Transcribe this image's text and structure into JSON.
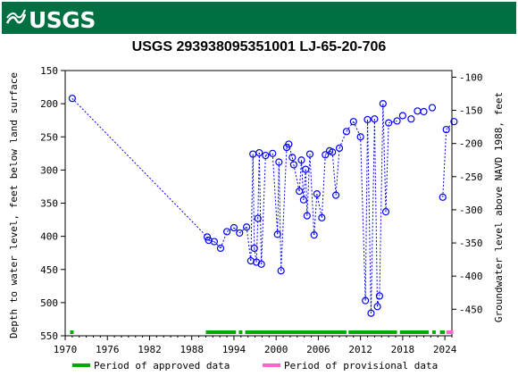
{
  "header": {
    "logo_text": "USGS",
    "band_color": "#006f41"
  },
  "chart_data": {
    "type": "scatter",
    "title": "USGS 293938095351001 LJ-65-20-706",
    "xlabel": "",
    "ylabel": "Depth to water level, feet below land surface",
    "ylabel_right": "Groundwater level above NAVD 1988, feet",
    "xlim": [
      1970,
      2025
    ],
    "ylim": [
      150,
      550
    ],
    "y_inverted": true,
    "ylim_right": [
      -90,
      -490
    ],
    "x_ticks": [
      1970,
      1976,
      1982,
      1988,
      1994,
      2000,
      2006,
      2012,
      2018,
      2024
    ],
    "y_ticks": [
      150,
      200,
      250,
      300,
      350,
      400,
      450,
      500,
      550
    ],
    "y_ticks_right": [
      -100,
      -150,
      -200,
      -250,
      -300,
      -350,
      -400,
      -450
    ],
    "grid": false,
    "marker_color": "#0000ff",
    "connect_color": "#0000ff",
    "points": [
      {
        "x": 1971.0,
        "y": 192,
        "c": false
      },
      {
        "x": 1990.2,
        "y": 401,
        "c": true
      },
      {
        "x": 1990.4,
        "y": 406,
        "c": true
      },
      {
        "x": 1991.2,
        "y": 408,
        "c": true
      },
      {
        "x": 1992.1,
        "y": 418,
        "c": true
      },
      {
        "x": 1993.0,
        "y": 393,
        "c": true
      },
      {
        "x": 1994.0,
        "y": 387,
        "c": true
      },
      {
        "x": 1994.8,
        "y": 395,
        "c": true
      },
      {
        "x": 1995.8,
        "y": 386,
        "c": true
      },
      {
        "x": 1996.4,
        "y": 437,
        "c": true
      },
      {
        "x": 1996.7,
        "y": 276,
        "c": true
      },
      {
        "x": 1996.9,
        "y": 418,
        "c": true
      },
      {
        "x": 1997.2,
        "y": 439,
        "c": true
      },
      {
        "x": 1997.4,
        "y": 373,
        "c": true
      },
      {
        "x": 1997.6,
        "y": 274,
        "c": true
      },
      {
        "x": 1997.9,
        "y": 442,
        "c": true
      },
      {
        "x": 1998.5,
        "y": 278,
        "c": true
      },
      {
        "x": 1999.5,
        "y": 275,
        "c": true
      },
      {
        "x": 2000.2,
        "y": 397,
        "c": true
      },
      {
        "x": 2000.4,
        "y": 288,
        "c": true
      },
      {
        "x": 2000.7,
        "y": 452,
        "c": true
      },
      {
        "x": 2001.5,
        "y": 266,
        "c": true
      },
      {
        "x": 2001.8,
        "y": 261,
        "c": true
      },
      {
        "x": 2002.3,
        "y": 281,
        "c": true
      },
      {
        "x": 2002.5,
        "y": 292,
        "c": true
      },
      {
        "x": 2003.3,
        "y": 332,
        "c": true
      },
      {
        "x": 2003.6,
        "y": 285,
        "c": true
      },
      {
        "x": 2003.9,
        "y": 345,
        "c": true
      },
      {
        "x": 2004.2,
        "y": 299,
        "c": true
      },
      {
        "x": 2004.4,
        "y": 369,
        "c": true
      },
      {
        "x": 2004.8,
        "y": 276,
        "c": true
      },
      {
        "x": 2005.4,
        "y": 398,
        "c": true
      },
      {
        "x": 2005.8,
        "y": 336,
        "c": true
      },
      {
        "x": 2006.5,
        "y": 372,
        "c": true
      },
      {
        "x": 2007.0,
        "y": 277,
        "c": true
      },
      {
        "x": 2007.6,
        "y": 271,
        "c": true
      },
      {
        "x": 2008.0,
        "y": 273,
        "c": true
      },
      {
        "x": 2008.5,
        "y": 338,
        "c": true
      },
      {
        "x": 2009.0,
        "y": 267,
        "c": true
      },
      {
        "x": 2010.0,
        "y": 242,
        "c": true
      },
      {
        "x": 2011.0,
        "y": 227,
        "c": true
      },
      {
        "x": 2012.0,
        "y": 250,
        "c": true
      },
      {
        "x": 2012.7,
        "y": 497,
        "c": true
      },
      {
        "x": 2013.0,
        "y": 224,
        "c": true
      },
      {
        "x": 2013.5,
        "y": 516,
        "c": true
      },
      {
        "x": 2014.0,
        "y": 223,
        "c": true
      },
      {
        "x": 2014.4,
        "y": 506,
        "c": true
      },
      {
        "x": 2014.7,
        "y": 490,
        "c": true
      },
      {
        "x": 2015.2,
        "y": 200,
        "c": true
      },
      {
        "x": 2015.6,
        "y": 363,
        "c": true
      },
      {
        "x": 2016.0,
        "y": 229,
        "c": true
      },
      {
        "x": 2017.2,
        "y": 226,
        "c": true
      },
      {
        "x": 2018.0,
        "y": 218,
        "c": false
      },
      {
        "x": 2019.2,
        "y": 223,
        "c": false
      },
      {
        "x": 2020.1,
        "y": 211,
        "c": false
      },
      {
        "x": 2021.0,
        "y": 212,
        "c": false
      },
      {
        "x": 2022.2,
        "y": 206,
        "c": false
      },
      {
        "x": 2023.7,
        "y": 341,
        "c": false
      },
      {
        "x": 2024.2,
        "y": 239,
        "c": true
      },
      {
        "x": 2025.3,
        "y": 227,
        "c": true
      }
    ],
    "approved_periods": [
      [
        1970.7,
        1971.2
      ],
      [
        1990.0,
        1994.3
      ],
      [
        1994.7,
        1995.2
      ],
      [
        1995.6,
        2010.0
      ],
      [
        2010.3,
        2017.2
      ],
      [
        2017.6,
        2021.7
      ],
      [
        2022.2,
        2022.7
      ],
      [
        2023.3,
        2024.0
      ]
    ],
    "provisional_periods": [
      [
        2024.2,
        2025.2
      ]
    ],
    "approved_color": "#00aa00",
    "provisional_color": "#ff66cc",
    "legend": [
      {
        "label": "Period of approved data",
        "color": "#00aa00"
      },
      {
        "label": "Period of provisional data",
        "color": "#ff66cc"
      }
    ],
    "legend_position": "bottom"
  }
}
